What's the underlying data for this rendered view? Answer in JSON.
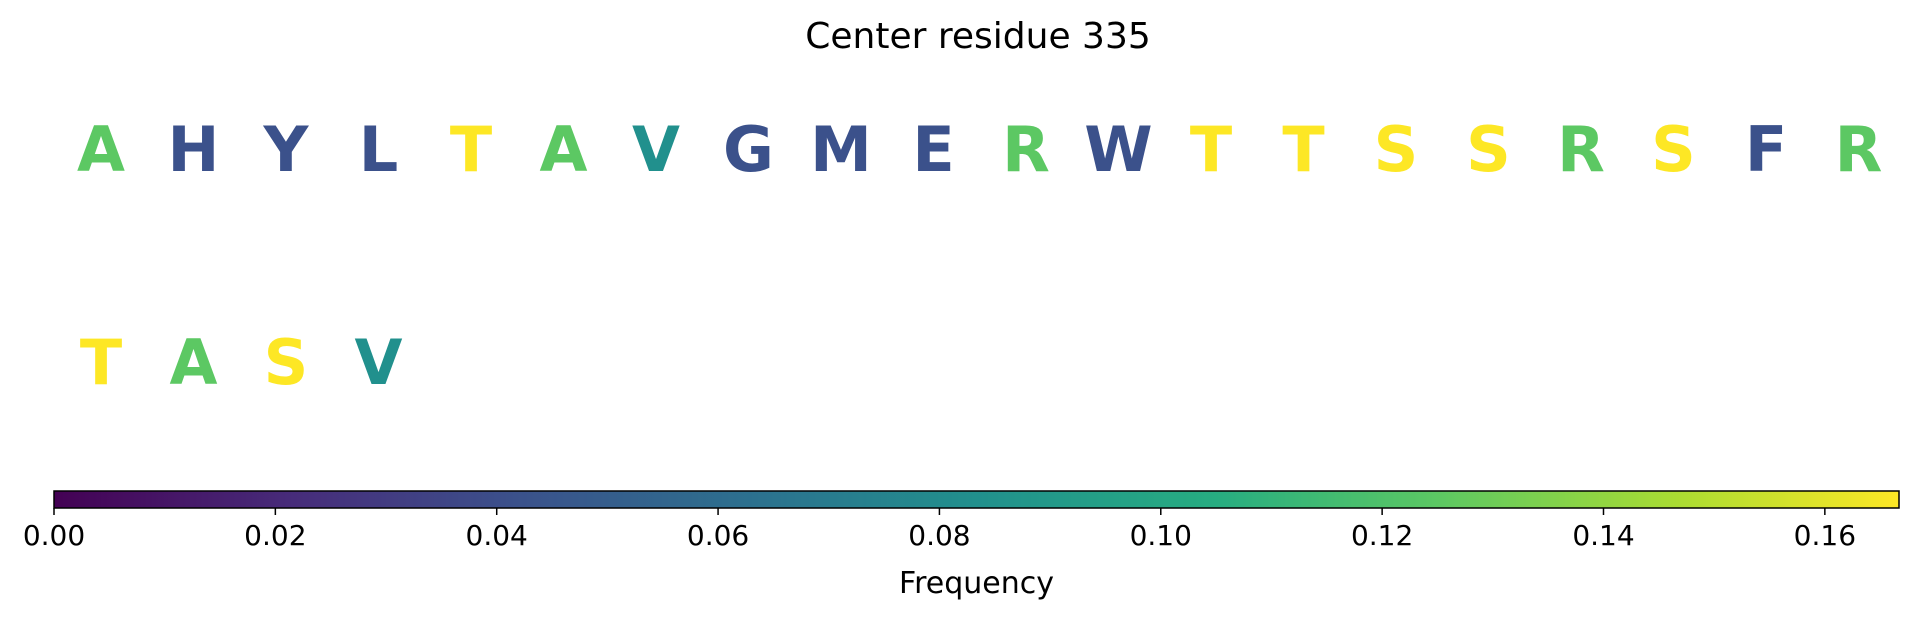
{
  "chart_data": {
    "type": "sequence-logo-colormap",
    "title": "Center residue 335",
    "colorbar": {
      "label": "Frequency",
      "colormap": "viridis",
      "range": [
        0.0,
        0.1667
      ],
      "ticks": [
        "0.00",
        "0.02",
        "0.04",
        "0.06",
        "0.08",
        "0.10",
        "0.12",
        "0.14",
        "0.16"
      ]
    },
    "residues": [
      {
        "letter": "A",
        "frequency": 0.125
      },
      {
        "letter": "H",
        "frequency": 0.0417
      },
      {
        "letter": "Y",
        "frequency": 0.0417
      },
      {
        "letter": "L",
        "frequency": 0.0417
      },
      {
        "letter": "T",
        "frequency": 0.1667
      },
      {
        "letter": "A",
        "frequency": 0.125
      },
      {
        "letter": "V",
        "frequency": 0.0833
      },
      {
        "letter": "G",
        "frequency": 0.0417
      },
      {
        "letter": "M",
        "frequency": 0.0417
      },
      {
        "letter": "E",
        "frequency": 0.0417
      },
      {
        "letter": "R",
        "frequency": 0.125
      },
      {
        "letter": "W",
        "frequency": 0.0417
      },
      {
        "letter": "T",
        "frequency": 0.1667
      },
      {
        "letter": "T",
        "frequency": 0.1667
      },
      {
        "letter": "S",
        "frequency": 0.1667
      },
      {
        "letter": "S",
        "frequency": 0.1667
      },
      {
        "letter": "R",
        "frequency": 0.125
      },
      {
        "letter": "S",
        "frequency": 0.1667
      },
      {
        "letter": "F",
        "frequency": 0.0417
      },
      {
        "letter": "R",
        "frequency": 0.125
      },
      {
        "letter": "T",
        "frequency": 0.1667
      },
      {
        "letter": "A",
        "frequency": 0.125
      },
      {
        "letter": "S",
        "frequency": 0.1667
      },
      {
        "letter": "V",
        "frequency": 0.0833
      }
    ]
  }
}
